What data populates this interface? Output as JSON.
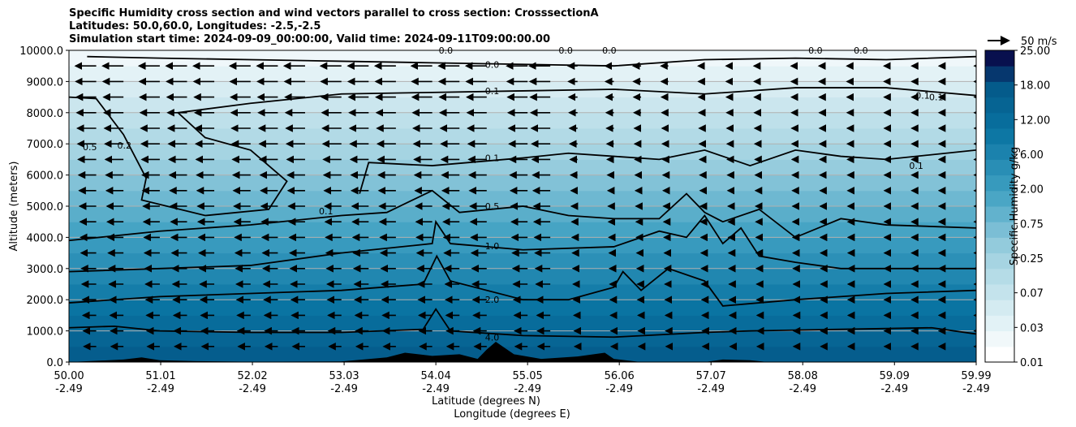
{
  "title_lines": [
    "Specific Humidity cross section and wind vectors parallel to cross section: CrosssectionA",
    "Latitudes: 50.0,60.0, Longitudes: -2.5,-2.5",
    "Simulation start time: 2024-09-09_00:00:00, Valid time: 2024-09-11T09:00:00.00"
  ],
  "chart_data": {
    "type": "heatmap",
    "ylabel": "Altitude (meters)",
    "xlabel_lines": [
      "Latitude (degrees N)",
      "Longitude (degrees E)"
    ],
    "x_ticks": [
      {
        "lat": "50.00",
        "lon": "-2.49"
      },
      {
        "lat": "51.01",
        "lon": "-2.49"
      },
      {
        "lat": "52.02",
        "lon": "-2.49"
      },
      {
        "lat": "53.03",
        "lon": "-2.49"
      },
      {
        "lat": "54.04",
        "lon": "-2.49"
      },
      {
        "lat": "55.05",
        "lon": "-2.49"
      },
      {
        "lat": "56.06",
        "lon": "-2.49"
      },
      {
        "lat": "57.07",
        "lon": "-2.49"
      },
      {
        "lat": "58.08",
        "lon": "-2.49"
      },
      {
        "lat": "59.09",
        "lon": "-2.49"
      },
      {
        "lat": "59.99",
        "lon": "-2.49"
      }
    ],
    "xlim": [
      50.0,
      59.99
    ],
    "ylim": [
      0,
      10000
    ],
    "y_ticks": [
      "0.0",
      "1000.0",
      "2000.0",
      "3000.0",
      "4000.0",
      "5000.0",
      "6000.0",
      "7000.0",
      "8000.0",
      "9000.0",
      "10000.0"
    ],
    "grid": "horizontal",
    "colorbar": {
      "label": "Specific Humidity g/kg",
      "tick_labels": [
        "0.01",
        "0.03",
        "0.07",
        "0.25",
        "0.75",
        "2.00",
        "6.00",
        "12.00",
        "18.00",
        "25.00"
      ],
      "n_levels": 20,
      "color_low": "#ffffff",
      "color_high": "#08104e"
    },
    "quiver_key": "50 m/s",
    "contour_labels": [
      {
        "text": "0.0",
        "lat": 54.66,
        "alt": 9550
      },
      {
        "text": "0.1",
        "lat": 54.66,
        "alt": 8700
      },
      {
        "text": "0.1",
        "lat": 54.66,
        "alt": 6550
      },
      {
        "text": "0.5",
        "lat": 54.66,
        "alt": 5000
      },
      {
        "text": "1.0",
        "lat": 54.66,
        "alt": 3720
      },
      {
        "text": "2.0",
        "lat": 54.66,
        "alt": 2000
      },
      {
        "text": "4.0",
        "lat": 54.66,
        "alt": 800
      },
      {
        "text": "0.5",
        "lat": 50.23,
        "alt": 6900
      },
      {
        "text": "0.2",
        "lat": 50.61,
        "alt": 6950
      },
      {
        "text": "0.1",
        "lat": 52.83,
        "alt": 4850
      },
      {
        "text": "0.0",
        "lat": 54.15,
        "alt": 10000
      },
      {
        "text": "0.0",
        "lat": 55.47,
        "alt": 10000
      },
      {
        "text": "0.0",
        "lat": 55.95,
        "alt": 10000
      },
      {
        "text": "0.0",
        "lat": 58.22,
        "alt": 10000
      },
      {
        "text": "0.0",
        "lat": 58.72,
        "alt": 10000
      },
      {
        "text": "0.1",
        "lat": 59.4,
        "alt": 8550
      },
      {
        "text": "0.1",
        "lat": 59.55,
        "alt": 8500
      },
      {
        "text": "0.1",
        "lat": 59.33,
        "alt": 6300
      }
    ],
    "contours": [
      {
        "level": "4.0",
        "points": [
          [
            50.0,
            1100
          ],
          [
            50.5,
            1150
          ],
          [
            51.0,
            1000
          ],
          [
            52.0,
            950
          ],
          [
            53.0,
            950
          ],
          [
            53.9,
            1050
          ],
          [
            54.04,
            1700
          ],
          [
            54.2,
            1000
          ],
          [
            55.0,
            850
          ],
          [
            56.0,
            800
          ],
          [
            57.0,
            950
          ],
          [
            57.5,
            1000
          ],
          [
            58.5,
            1050
          ],
          [
            59.5,
            1100
          ],
          [
            59.99,
            900
          ]
        ]
      },
      {
        "level": "2.0",
        "points": [
          [
            50.0,
            1900
          ],
          [
            51.0,
            2100
          ],
          [
            52.0,
            2200
          ],
          [
            53.0,
            2300
          ],
          [
            53.9,
            2500
          ],
          [
            54.05,
            3400
          ],
          [
            54.2,
            2600
          ],
          [
            55.0,
            2000
          ],
          [
            55.5,
            2000
          ],
          [
            56.0,
            2400
          ],
          [
            56.1,
            2900
          ],
          [
            56.3,
            2300
          ],
          [
            56.6,
            3000
          ],
          [
            57.0,
            2600
          ],
          [
            57.2,
            1800
          ],
          [
            58.0,
            2000
          ],
          [
            59.0,
            2200
          ],
          [
            59.99,
            2300
          ]
        ]
      },
      {
        "level": "1.0",
        "points": [
          [
            50.0,
            2900
          ],
          [
            51.0,
            3000
          ],
          [
            52.0,
            3100
          ],
          [
            53.0,
            3500
          ],
          [
            54.0,
            3800
          ],
          [
            54.04,
            4500
          ],
          [
            54.2,
            3800
          ],
          [
            55.0,
            3600
          ],
          [
            56.0,
            3700
          ],
          [
            56.5,
            4200
          ],
          [
            56.8,
            4000
          ],
          [
            57.0,
            4700
          ],
          [
            57.2,
            3800
          ],
          [
            57.4,
            4300
          ],
          [
            57.6,
            3400
          ],
          [
            58.0,
            3200
          ],
          [
            58.5,
            3000
          ],
          [
            59.99,
            3000
          ]
        ]
      },
      {
        "level": "0.5",
        "points": [
          [
            50.0,
            3900
          ],
          [
            51.0,
            4200
          ],
          [
            52.0,
            4400
          ],
          [
            53.0,
            4700
          ],
          [
            53.5,
            4800
          ],
          [
            54.0,
            5500
          ],
          [
            54.3,
            4800
          ],
          [
            55.0,
            5000
          ],
          [
            55.5,
            4700
          ],
          [
            56.0,
            4600
          ],
          [
            56.5,
            4600
          ],
          [
            56.8,
            5400
          ],
          [
            57.0,
            4800
          ],
          [
            57.2,
            4500
          ],
          [
            57.6,
            4900
          ],
          [
            58.0,
            4000
          ],
          [
            58.5,
            4600
          ],
          [
            59.0,
            4400
          ],
          [
            59.99,
            4300
          ]
        ]
      },
      {
        "level": "0.1",
        "points": [
          [
            50.0,
            8500
          ],
          [
            50.3,
            8450
          ],
          [
            50.6,
            7300
          ],
          [
            50.85,
            5900
          ],
          [
            50.8,
            5200
          ],
          [
            51.5,
            4700
          ],
          [
            52.2,
            4900
          ],
          [
            52.4,
            5800
          ],
          [
            52.0,
            6800
          ],
          [
            51.5,
            7200
          ],
          [
            51.2,
            8000
          ],
          [
            52.0,
            8300
          ],
          [
            53.0,
            8600
          ],
          [
            54.0,
            8650
          ],
          [
            55.0,
            8700
          ],
          [
            56.0,
            8750
          ],
          [
            57.0,
            8600
          ],
          [
            58.0,
            8800
          ],
          [
            59.0,
            8800
          ],
          [
            59.99,
            8550
          ]
        ]
      },
      {
        "level": "0.1",
        "points": [
          [
            53.2,
            5400
          ],
          [
            53.3,
            6400
          ],
          [
            54.0,
            6300
          ],
          [
            55.0,
            6550
          ],
          [
            55.5,
            6700
          ],
          [
            56.0,
            6600
          ],
          [
            56.5,
            6500
          ],
          [
            57.0,
            6800
          ],
          [
            57.5,
            6300
          ],
          [
            58.0,
            6800
          ],
          [
            58.5,
            6600
          ],
          [
            59.0,
            6500
          ],
          [
            59.99,
            6800
          ]
        ]
      },
      {
        "level": "0.0",
        "points": [
          [
            50.2,
            9800
          ],
          [
            51.0,
            9750
          ],
          [
            52.0,
            9700
          ],
          [
            53.0,
            9650
          ],
          [
            54.0,
            9600
          ],
          [
            55.0,
            9550
          ],
          [
            56.0,
            9500
          ],
          [
            57.0,
            9700
          ],
          [
            58.0,
            9750
          ],
          [
            59.0,
            9700
          ],
          [
            59.99,
            9800
          ]
        ]
      }
    ],
    "terrain": [
      [
        50.0,
        0
      ],
      [
        50.6,
        80
      ],
      [
        50.8,
        150
      ],
      [
        51.0,
        60
      ],
      [
        51.4,
        30
      ],
      [
        52.0,
        10
      ],
      [
        53.0,
        20
      ],
      [
        53.5,
        150
      ],
      [
        53.7,
        300
      ],
      [
        54.0,
        200
      ],
      [
        54.3,
        250
      ],
      [
        54.5,
        100
      ],
      [
        54.6,
        400
      ],
      [
        54.7,
        650
      ],
      [
        54.9,
        250
      ],
      [
        55.2,
        100
      ],
      [
        55.6,
        180
      ],
      [
        55.9,
        300
      ],
      [
        56.0,
        100
      ],
      [
        56.3,
        0
      ],
      [
        57.0,
        0
      ],
      [
        57.2,
        80
      ],
      [
        57.5,
        60
      ],
      [
        57.7,
        0
      ],
      [
        59.99,
        0
      ]
    ],
    "wind_rows_alt": [
      500,
      1000,
      1500,
      2000,
      2500,
      3000,
      3500,
      4000,
      4500,
      5000,
      5500,
      6000,
      6500,
      7000,
      7500,
      8000,
      8500,
      9000,
      9500
    ],
    "wind_cols_lat": [
      50.0,
      50.3,
      50.6,
      51.0,
      51.3,
      51.6,
      52.0,
      52.3,
      52.6,
      53.0,
      53.3,
      53.6,
      54.0,
      54.3,
      54.6,
      55.05,
      55.3,
      55.6,
      56.0,
      56.3,
      56.6,
      57.0,
      57.3,
      57.6,
      58.0,
      58.3,
      58.6,
      59.0,
      59.3,
      59.6,
      59.99
    ],
    "wind_scale_ms": 50
  }
}
